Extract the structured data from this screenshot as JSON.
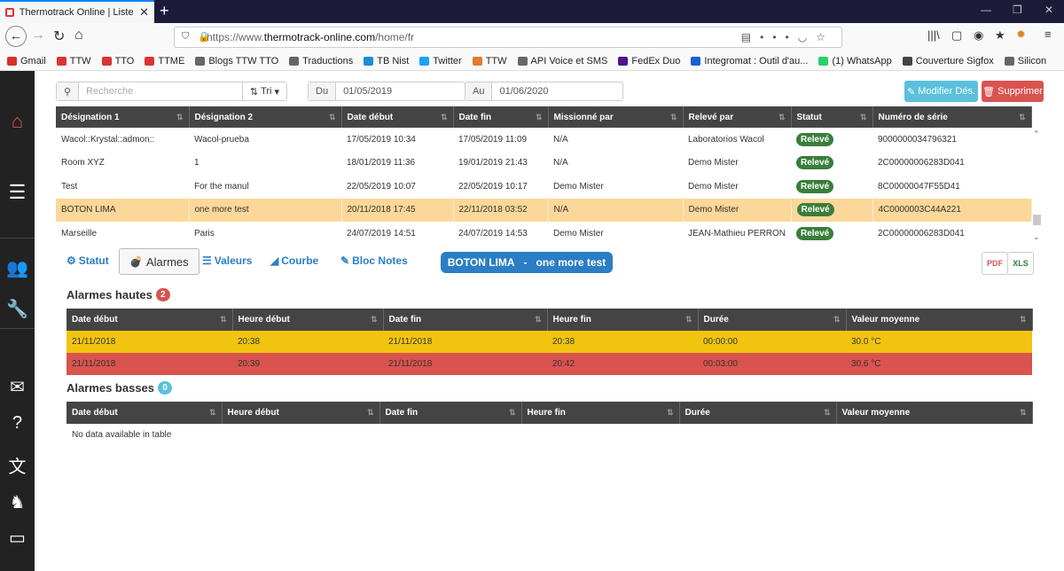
{
  "browser": {
    "tab_title": "Thermotrack Online | Liste des",
    "url_prefix": "https://www.",
    "url_domain": "thermotrack-online.com",
    "url_path": "/home/fr",
    "bookmarks": [
      {
        "label": "Gmail",
        "icon": "gmail-icon",
        "color": "#d93025"
      },
      {
        "label": "TTW",
        "icon": "ttw-icon",
        "color": "#d33"
      },
      {
        "label": "TTO",
        "icon": "tto-icon",
        "color": "#d33"
      },
      {
        "label": "TTME",
        "icon": "ttme-icon",
        "color": "#d33"
      },
      {
        "label": "Blogs TTW TTO",
        "icon": "folder-icon",
        "color": "#666"
      },
      {
        "label": "Traductions",
        "icon": "folder-icon",
        "color": "#666"
      },
      {
        "label": "TB Nist",
        "icon": "tbnist-icon",
        "color": "#1a8fd6"
      },
      {
        "label": "Twitter",
        "icon": "twitter-icon",
        "color": "#1da1f2"
      },
      {
        "label": "TTW",
        "icon": "ttw-icon",
        "color": "#e37a2e"
      },
      {
        "label": "API Voice et SMS",
        "icon": "folder-icon",
        "color": "#666"
      },
      {
        "label": "FedEx Duo",
        "icon": "fedex-icon",
        "color": "#4d148c"
      },
      {
        "label": "Integromat : Outil d'au...",
        "icon": "info-icon",
        "color": "#1a5fd6"
      },
      {
        "label": "(1) WhatsApp",
        "icon": "whatsapp-icon",
        "color": "#25d366"
      },
      {
        "label": "Couverture Sigfox",
        "icon": "globe-icon",
        "color": "#444"
      },
      {
        "label": "Silicon",
        "icon": "folder-icon",
        "color": "#666"
      }
    ]
  },
  "filter": {
    "search_placeholder": "Recherche",
    "sort_label": "Tri",
    "from_label": "Du",
    "from_value": "01/05/2019",
    "to_label": "Au",
    "to_value": "01/06/2020",
    "modify_label": "Modifier Dés.",
    "delete_label": "Supprimer"
  },
  "main_table": {
    "headers": [
      "Désignation 1",
      "Désignation 2",
      "Date début",
      "Date fin",
      "Missionné par",
      "Relevé par",
      "Statut",
      "Numéro de série"
    ],
    "rows": [
      [
        "Wacol::Krystal::admon::",
        "Wacol-prueba",
        "17/05/2019 10:34",
        "17/05/2019 11:09",
        "N/A",
        "Laboratorios Wacol",
        "Relevé",
        "9000000034796321"
      ],
      [
        "Room XYZ",
        "1",
        "18/01/2019 11:36",
        "19/01/2019 21:43",
        "N/A",
        "Demo Mister",
        "Relevé",
        "2C00000006283D041"
      ],
      [
        "Test",
        "For the manul",
        "22/05/2019 10:07",
        "22/05/2019 10:17",
        "Demo Mister",
        "Demo Mister",
        "Relevé",
        "8C00000047F55D41"
      ],
      [
        "BOTON LIMA",
        "one more test",
        "20/11/2018 17:45",
        "22/11/2018 03:52",
        "N/A",
        "Demo Mister",
        "Relevé",
        "4C0000003C44A221"
      ],
      [
        "Marseille",
        "Paris",
        "24/07/2019 14:51",
        "24/07/2019 14:53",
        "Demo Mister",
        "JEAN-Mathieu PERRON",
        "Relevé",
        "2C00000006283D041"
      ]
    ],
    "selected_index": 3
  },
  "detail": {
    "tabs": [
      "Statut",
      "Alarmes",
      "Valeurs",
      "Courbe",
      "Bloc Notes"
    ],
    "active_tab": "Alarmes",
    "banner_left": "BOTON LIMA",
    "banner_sep": "-",
    "banner_right": "one more test",
    "export_pdf": "PDF",
    "export_xls": "XLS"
  },
  "high_alarms": {
    "title": "Alarmes hautes",
    "count": "2",
    "headers": [
      "Date début",
      "Heure début",
      "Date fin",
      "Heure fin",
      "Durée",
      "Valeur moyenne"
    ],
    "rows": [
      [
        "21/11/2018",
        "20:38",
        "21/11/2018",
        "20:38",
        "00:00:00",
        "30.0 °C"
      ],
      [
        "21/11/2018",
        "20:39",
        "21/11/2018",
        "20:42",
        "00:03:00",
        "30.6 °C"
      ]
    ]
  },
  "low_alarms": {
    "title": "Alarmes basses",
    "count": "0",
    "headers": [
      "Date début",
      "Heure début",
      "Date fin",
      "Heure fin",
      "Durée",
      "Valeur moyenne"
    ],
    "empty_text": "No data available in table"
  }
}
